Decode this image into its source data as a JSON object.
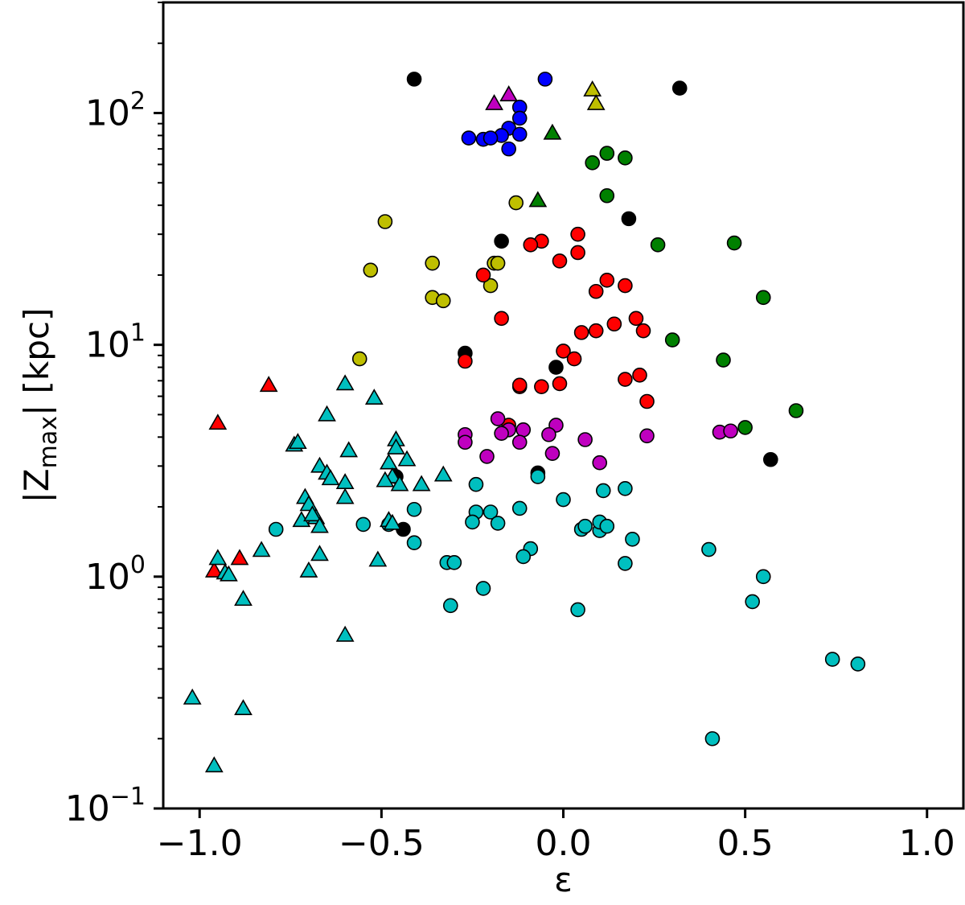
{
  "chart_data": {
    "type": "scatter",
    "title": "",
    "xlabel": "ε",
    "ylabel": {
      "prefix": "|Z",
      "subscript": "max",
      "suffix": "| [kpc]"
    },
    "xlim": [
      -1.1,
      1.1
    ],
    "ylim": [
      0.1,
      300
    ],
    "yscale": "log",
    "xticks": [
      -1.0,
      -0.5,
      0.0,
      0.5,
      1.0
    ],
    "xtick_labels": [
      "−1.0",
      "−0.5",
      "0.0",
      "0.5",
      "1.0"
    ],
    "yticks": [
      {
        "value": 0.1,
        "base": "10",
        "exp": "−1"
      },
      {
        "value": 1,
        "base": "10",
        "exp": "0"
      },
      {
        "value": 10,
        "base": "10",
        "exp": "1"
      },
      {
        "value": 100,
        "base": "10",
        "exp": "2"
      }
    ],
    "grid": false,
    "legend": "none",
    "series": [
      {
        "marker": "circle",
        "color": "#0000ff",
        "points": [
          [
            -0.05,
            140
          ],
          [
            -0.26,
            78
          ],
          [
            -0.22,
            77
          ],
          [
            -0.12,
            106
          ],
          [
            -0.12,
            95
          ],
          [
            -0.15,
            86
          ],
          [
            -0.17,
            80
          ],
          [
            -0.12,
            81
          ],
          [
            -0.2,
            78
          ],
          [
            -0.15,
            70
          ]
        ]
      },
      {
        "marker": "circle",
        "color": "#000000",
        "points": [
          [
            -0.41,
            140
          ],
          [
            0.32,
            128
          ],
          [
            -0.17,
            28
          ],
          [
            0.18,
            35
          ],
          [
            -0.27,
            9.2
          ],
          [
            -0.02,
            8
          ],
          [
            0.57,
            3.2
          ],
          [
            -0.07,
            2.8
          ],
          [
            -0.46,
            2.7
          ],
          [
            -0.44,
            1.6
          ]
        ]
      },
      {
        "marker": "circle",
        "color": "#bfbf00",
        "points": [
          [
            -0.49,
            34
          ],
          [
            -0.13,
            41
          ],
          [
            -0.53,
            21
          ],
          [
            -0.36,
            22.5
          ],
          [
            -0.19,
            22.5
          ],
          [
            -0.18,
            22.5
          ],
          [
            -0.36,
            16
          ],
          [
            -0.33,
            15.5
          ],
          [
            -0.2,
            18
          ],
          [
            -0.56,
            8.7
          ]
        ]
      },
      {
        "marker": "circle",
        "color": "#008000",
        "points": [
          [
            0.08,
            61
          ],
          [
            0.12,
            67
          ],
          [
            0.17,
            64
          ],
          [
            0.12,
            44
          ],
          [
            0.26,
            27
          ],
          [
            0.47,
            27.5
          ],
          [
            0.55,
            16
          ],
          [
            0.3,
            10.5
          ],
          [
            0.44,
            8.6
          ],
          [
            0.64,
            5.2
          ],
          [
            0.5,
            4.4
          ]
        ]
      },
      {
        "marker": "circle",
        "color": "#ff0000",
        "points": [
          [
            -0.06,
            28
          ],
          [
            -0.09,
            27
          ],
          [
            0.04,
            30
          ],
          [
            0.04,
            25
          ],
          [
            -0.01,
            23
          ],
          [
            -0.22,
            20
          ],
          [
            0.09,
            17
          ],
          [
            0.12,
            19
          ],
          [
            0.17,
            18
          ],
          [
            -0.17,
            13
          ],
          [
            0.2,
            13
          ],
          [
            0.22,
            11.5
          ],
          [
            0.14,
            12.3
          ],
          [
            0.09,
            11.5
          ],
          [
            0.05,
            11.3
          ],
          [
            0.0,
            9.4
          ],
          [
            0.03,
            8.7
          ],
          [
            -0.27,
            8.5
          ],
          [
            0.17,
            7.1
          ],
          [
            0.21,
            7.4
          ],
          [
            -0.01,
            6.8
          ],
          [
            -0.12,
            6.6
          ],
          [
            -0.06,
            6.6
          ],
          [
            -0.12,
            6.7
          ],
          [
            0.23,
            5.7
          ],
          [
            -0.15,
            4.5
          ]
        ]
      },
      {
        "marker": "circle",
        "color": "#bf00bf",
        "points": [
          [
            -0.18,
            4.8
          ],
          [
            -0.27,
            4.1
          ],
          [
            -0.15,
            4.3
          ],
          [
            -0.11,
            4.3
          ],
          [
            -0.17,
            4.15
          ],
          [
            -0.02,
            4.5
          ],
          [
            -0.04,
            4.1
          ],
          [
            0.06,
            3.9
          ],
          [
            -0.27,
            3.8
          ],
          [
            -0.12,
            3.8
          ],
          [
            0.23,
            4.05
          ],
          [
            0.43,
            4.2
          ],
          [
            0.46,
            4.25
          ],
          [
            -0.21,
            3.3
          ],
          [
            -0.03,
            3.4
          ],
          [
            0.1,
            3.1
          ]
        ]
      },
      {
        "marker": "circle",
        "color": "#00bfbf",
        "points": [
          [
            -0.07,
            2.7
          ],
          [
            -0.24,
            2.5
          ],
          [
            0.0,
            2.15
          ],
          [
            0.11,
            2.35
          ],
          [
            0.17,
            2.4
          ],
          [
            -0.41,
            1.95
          ],
          [
            -0.24,
            1.9
          ],
          [
            -0.2,
            1.9
          ],
          [
            -0.12,
            1.97
          ],
          [
            -0.18,
            1.7
          ],
          [
            -0.25,
            1.72
          ],
          [
            -0.55,
            1.68
          ],
          [
            -0.48,
            1.68
          ],
          [
            -0.79,
            1.6
          ],
          [
            0.05,
            1.6
          ],
          [
            0.06,
            1.65
          ],
          [
            0.1,
            1.58
          ],
          [
            0.1,
            1.72
          ],
          [
            0.12,
            1.65
          ],
          [
            0.19,
            1.45
          ],
          [
            -0.41,
            1.4
          ],
          [
            -0.09,
            1.32
          ],
          [
            -0.11,
            1.22
          ],
          [
            -0.32,
            1.15
          ],
          [
            -0.3,
            1.15
          ],
          [
            0.17,
            1.14
          ],
          [
            0.4,
            1.31
          ],
          [
            -0.31,
            0.75
          ],
          [
            -0.22,
            0.89
          ],
          [
            0.04,
            0.72
          ],
          [
            0.55,
            1.0
          ],
          [
            0.52,
            0.78
          ],
          [
            0.74,
            0.44
          ],
          [
            0.81,
            0.42
          ],
          [
            0.41,
            0.2
          ]
        ]
      },
      {
        "marker": "triangle",
        "color": "#bf00bf",
        "points": [
          [
            -0.19,
            110
          ],
          [
            -0.15,
            120
          ]
        ]
      },
      {
        "marker": "triangle",
        "color": "#bfbf00",
        "points": [
          [
            0.08,
            126
          ],
          [
            0.09,
            110
          ]
        ]
      },
      {
        "marker": "triangle",
        "color": "#008000",
        "points": [
          [
            -0.03,
            82
          ],
          [
            -0.07,
            42
          ]
        ]
      },
      {
        "marker": "triangle",
        "color": "#ff0000",
        "points": [
          [
            -0.81,
            6.7
          ],
          [
            -0.95,
            4.6
          ],
          [
            -0.89,
            1.2
          ],
          [
            -0.96,
            1.06
          ]
        ]
      },
      {
        "marker": "triangle",
        "color": "#00bfbf",
        "points": [
          [
            -0.6,
            6.8
          ],
          [
            -0.52,
            5.9
          ],
          [
            -0.65,
            5.0
          ],
          [
            -0.74,
            3.7
          ],
          [
            -0.73,
            3.8
          ],
          [
            -0.59,
            3.5
          ],
          [
            -0.46,
            3.9
          ],
          [
            -0.46,
            3.6
          ],
          [
            -0.48,
            3.1
          ],
          [
            -0.43,
            3.2
          ],
          [
            -0.67,
            3.0
          ],
          [
            -0.65,
            2.8
          ],
          [
            -0.64,
            2.65
          ],
          [
            -0.6,
            2.55
          ],
          [
            -0.47,
            2.7
          ],
          [
            -0.49,
            2.6
          ],
          [
            -0.45,
            2.5
          ],
          [
            -0.33,
            2.75
          ],
          [
            -0.39,
            2.5
          ],
          [
            -0.71,
            2.2
          ],
          [
            -0.7,
            2.05
          ],
          [
            -0.68,
            1.8
          ],
          [
            -0.72,
            1.75
          ],
          [
            -0.69,
            1.85
          ],
          [
            -0.67,
            1.65
          ],
          [
            -0.6,
            2.2
          ],
          [
            -0.48,
            1.75
          ],
          [
            -0.47,
            1.7
          ],
          [
            -0.83,
            1.3
          ],
          [
            -0.67,
            1.25
          ],
          [
            -0.51,
            1.18
          ],
          [
            -0.95,
            1.2
          ],
          [
            -0.93,
            1.04
          ],
          [
            -0.92,
            1.02
          ],
          [
            -0.7,
            1.06
          ],
          [
            -0.88,
            0.8
          ],
          [
            -0.6,
            0.56
          ],
          [
            -1.02,
            0.3
          ],
          [
            -0.88,
            0.27
          ],
          [
            -0.96,
            0.153
          ]
        ]
      }
    ]
  }
}
